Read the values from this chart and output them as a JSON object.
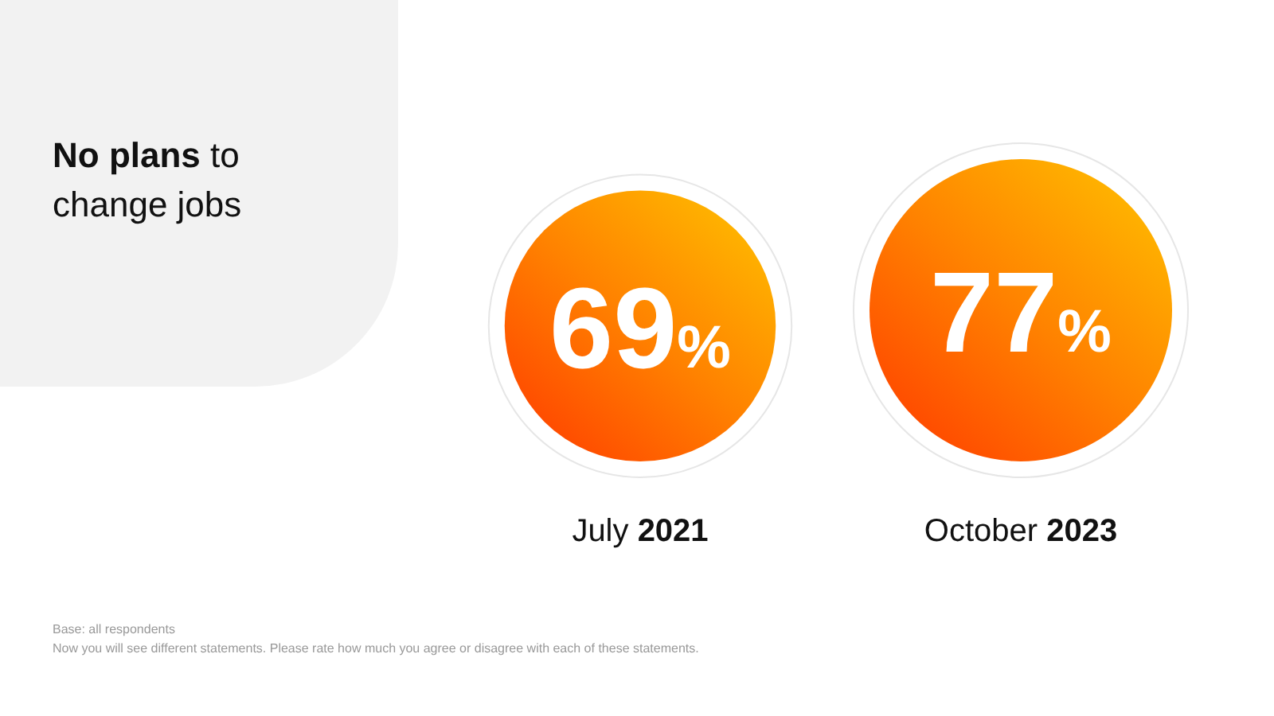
{
  "chart_data": {
    "type": "other",
    "title": "No plans to change jobs",
    "categories": [
      "July 2021",
      "October 2023"
    ],
    "values": [
      69,
      77
    ],
    "value_labels": [
      "69%",
      "77%"
    ],
    "colors": [
      "#ff8200",
      "#ff8200"
    ],
    "annotations": [
      "Base: all respondents",
      "Now you will see different statements. Please rate how much you agree or disagree with each of these statements."
    ]
  }
}
